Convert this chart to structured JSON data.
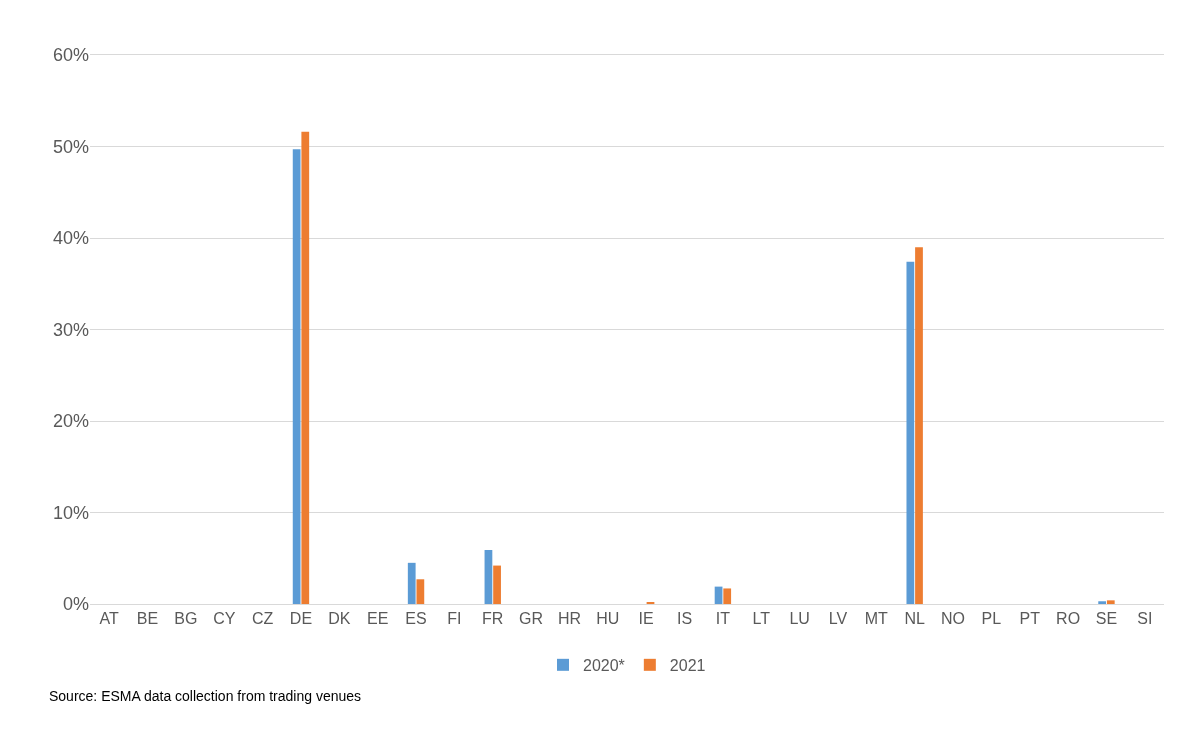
{
  "chart_data": {
    "type": "bar",
    "categories": [
      "AT",
      "BE",
      "BG",
      "CY",
      "CZ",
      "DE",
      "DK",
      "EE",
      "ES",
      "FI",
      "FR",
      "GR",
      "HR",
      "HU",
      "IE",
      "IS",
      "IT",
      "LT",
      "LU",
      "LV",
      "MT",
      "NL",
      "NO",
      "PL",
      "PT",
      "RO",
      "SE",
      "SI"
    ],
    "series": [
      {
        "name": "2020*",
        "color": "#5b9bd5",
        "values": [
          0,
          0,
          0,
          0,
          0,
          49.7,
          0,
          0,
          4.5,
          0,
          5.9,
          0,
          0,
          0,
          0,
          0,
          1.9,
          0,
          0,
          0,
          0,
          37.4,
          0,
          0,
          0,
          0,
          0.3,
          0
        ]
      },
      {
        "name": "2021",
        "color": "#ed7d31",
        "values": [
          0,
          0,
          0,
          0,
          0,
          51.6,
          0,
          0,
          2.7,
          0,
          4.2,
          0,
          0,
          0,
          0.2,
          0,
          1.7,
          0,
          0,
          0,
          0,
          39.0,
          0,
          0,
          0,
          0,
          0.4,
          0
        ]
      }
    ],
    "ylim": [
      0,
      60
    ],
    "yticks": [
      {
        "value": 0,
        "label": "0%"
      },
      {
        "value": 10,
        "label": "10%"
      },
      {
        "value": 20,
        "label": "20%"
      },
      {
        "value": 30,
        "label": "30%"
      },
      {
        "value": 40,
        "label": "40%"
      },
      {
        "value": 50,
        "label": "50%"
      },
      {
        "value": 60,
        "label": "60%"
      }
    ],
    "grid": "y",
    "legend": "bottom",
    "annotations": [
      "Source: ESMA data collection from trading venues"
    ]
  }
}
